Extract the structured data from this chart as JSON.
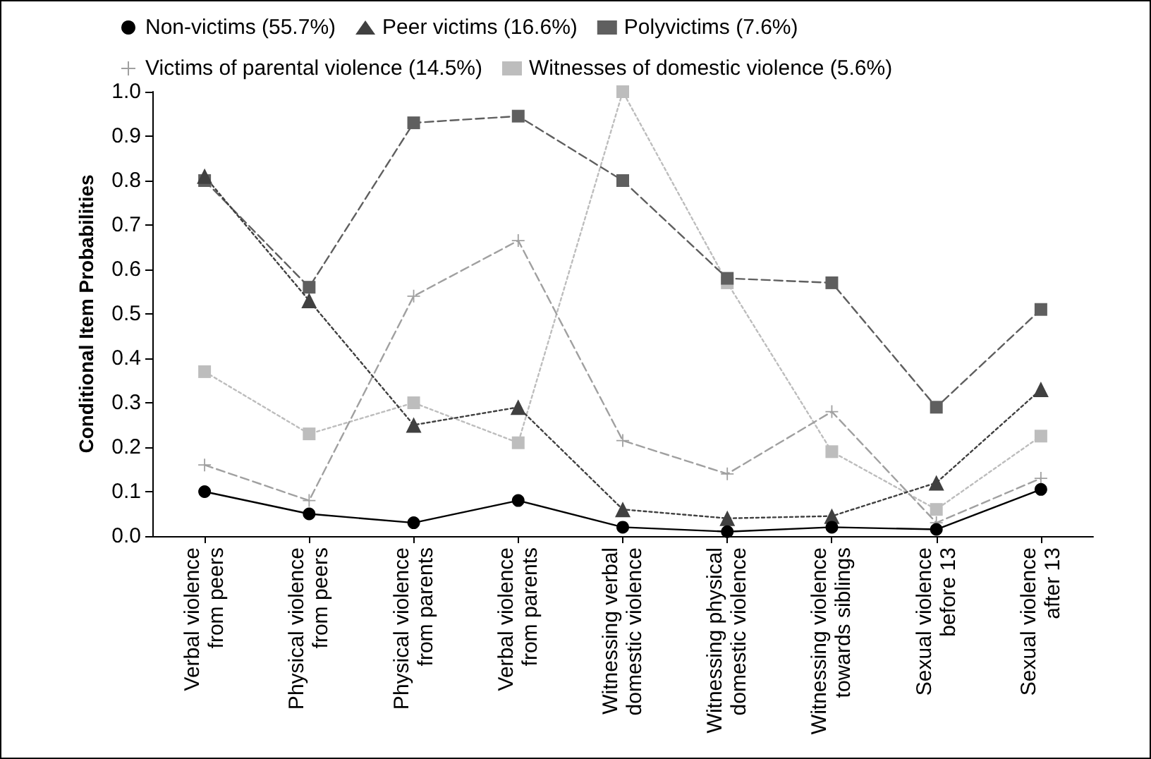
{
  "chart_data": {
    "type": "line",
    "ylabel": "Conditional Item Probabilities",
    "categories": [
      "Verbal violence\nfrom peers",
      "Physical violence\nfrom peers",
      "Physical violence\nfrom parents",
      "Verbal violence\nfrom parents",
      "Witnessing verbal\ndomestic violence",
      "Witnessing physical\ndomestic violence",
      "Witnessing violence\ntowards siblings",
      "Sexual violence\nbefore 13",
      "Sexual violence\nafter 13"
    ],
    "series": [
      {
        "name": "Non-victims (55.7%)",
        "color": "#000000",
        "marker": "circle",
        "line_style": "solid",
        "values": [
          0.1,
          0.05,
          0.03,
          0.08,
          0.02,
          0.01,
          0.02,
          0.015,
          0.105
        ]
      },
      {
        "name": "Peer victims (16.6%)",
        "color": "#404040",
        "marker": "triangle",
        "line_style": "dotted",
        "values": [
          0.81,
          0.53,
          0.25,
          0.29,
          0.06,
          0.04,
          0.045,
          0.12,
          0.33
        ]
      },
      {
        "name": "Polyvictims (7.6%)",
        "color": "#5f5f5f",
        "marker": "square",
        "line_style": "dashed",
        "values": [
          0.8,
          0.56,
          0.93,
          0.945,
          0.8,
          0.58,
          0.57,
          0.29,
          0.51
        ]
      },
      {
        "name": "Victims of parental violence (14.5%)",
        "color": "#a0a0a0",
        "marker": "cross",
        "line_style": "dashed",
        "values": [
          0.16,
          0.08,
          0.54,
          0.665,
          0.215,
          0.14,
          0.28,
          0.03,
          0.13
        ]
      },
      {
        "name": "Witnesses of domestic violence (5.6%)",
        "color": "#bdbdbd",
        "marker": "square",
        "line_style": "dotted",
        "values": [
          0.37,
          0.23,
          0.3,
          0.21,
          1.0,
          0.57,
          0.19,
          0.06,
          0.225
        ]
      }
    ],
    "ylim": [
      0,
      1
    ],
    "yticks": [
      {
        "value": 0,
        "label": "0.0"
      },
      0.1,
      0.2,
      0.3,
      0.4,
      0.5,
      0.6,
      0.7,
      0.8,
      0.9,
      {
        "value": 1,
        "label": "1.0"
      }
    ],
    "grid": false,
    "legend": "top"
  }
}
